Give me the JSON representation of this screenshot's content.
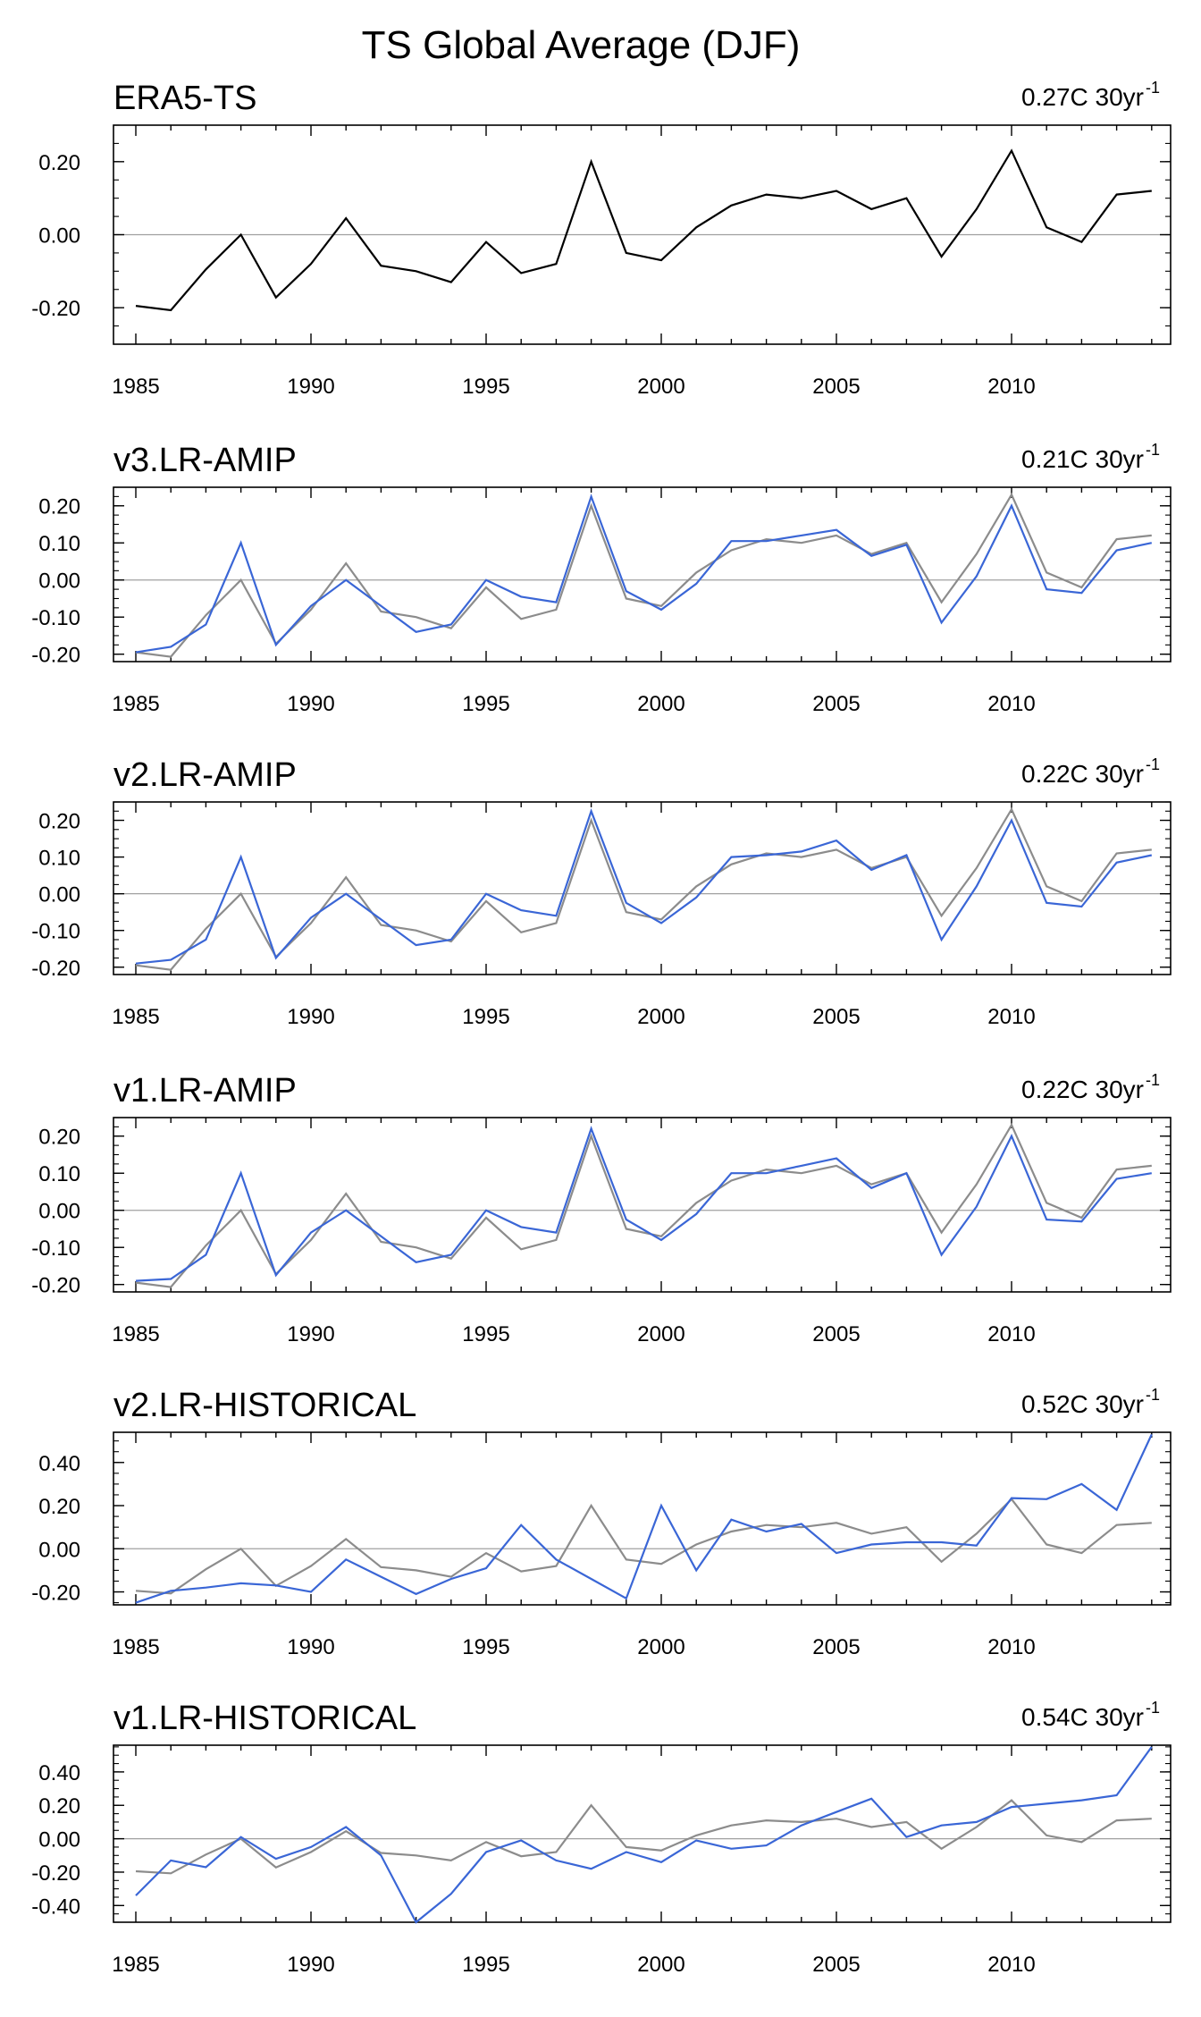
{
  "figure_title": "TS Global Average (DJF)",
  "colors": {
    "reference": "#8c8c8c",
    "reference_first": "#000000",
    "model": "#3a66d6",
    "zero_line": "#a0a0a0",
    "axis": "#000000"
  },
  "chart_data": [
    {
      "type": "line",
      "title": "ERA5-TS",
      "trend_value": "0.27C 30yr",
      "trend_exponent": "-1",
      "x": [
        1985,
        1986,
        1987,
        1988,
        1989,
        1990,
        1991,
        1992,
        1993,
        1994,
        1995,
        1996,
        1997,
        1998,
        1999,
        2000,
        2001,
        2002,
        2003,
        2004,
        2005,
        2006,
        2007,
        2008,
        2009,
        2010,
        2011,
        2012,
        2013,
        2014
      ],
      "x_ticks": [
        "1985",
        "1990",
        "1995",
        "2000",
        "2005",
        "2010"
      ],
      "ylim": [
        -0.3,
        0.3
      ],
      "y_ticks": [
        "0.20",
        "0.00",
        "-0.20"
      ],
      "series": [
        {
          "name": "ERA5-TS",
          "role": "reference",
          "values": [
            -0.195,
            -0.207,
            -0.095,
            0.0,
            -0.172,
            -0.08,
            0.045,
            -0.085,
            -0.1,
            -0.13,
            -0.02,
            -0.105,
            -0.08,
            0.2,
            -0.05,
            -0.07,
            0.02,
            0.08,
            0.11,
            0.1,
            0.12,
            0.07,
            0.1,
            -0.06,
            0.07,
            0.23,
            0.02,
            -0.02,
            0.11,
            0.12
          ]
        }
      ]
    },
    {
      "type": "line",
      "title": "v3.LR-AMIP",
      "trend_value": "0.21C 30yr",
      "trend_exponent": "-1",
      "x": [
        1985,
        1986,
        1987,
        1988,
        1989,
        1990,
        1991,
        1992,
        1993,
        1994,
        1995,
        1996,
        1997,
        1998,
        1999,
        2000,
        2001,
        2002,
        2003,
        2004,
        2005,
        2006,
        2007,
        2008,
        2009,
        2010,
        2011,
        2012,
        2013,
        2014
      ],
      "x_ticks": [
        "1985",
        "1990",
        "1995",
        "2000",
        "2005",
        "2010"
      ],
      "ylim": [
        -0.22,
        0.25
      ],
      "y_ticks": [
        "0.20",
        "0.10",
        "0.00",
        "-0.10",
        "-0.20"
      ],
      "series": [
        {
          "name": "ERA5-TS",
          "role": "reference",
          "values": [
            -0.195,
            -0.207,
            -0.095,
            0.0,
            -0.172,
            -0.08,
            0.045,
            -0.085,
            -0.1,
            -0.13,
            -0.02,
            -0.105,
            -0.08,
            0.2,
            -0.05,
            -0.07,
            0.02,
            0.08,
            0.11,
            0.1,
            0.12,
            0.07,
            0.1,
            -0.06,
            0.07,
            0.23,
            0.02,
            -0.02,
            0.11,
            0.12
          ]
        },
        {
          "name": "v3.LR-AMIP",
          "role": "model",
          "values": [
            -0.195,
            -0.18,
            -0.12,
            0.1,
            -0.175,
            -0.07,
            0.0,
            -0.07,
            -0.14,
            -0.12,
            0.0,
            -0.045,
            -0.06,
            0.225,
            -0.03,
            -0.08,
            -0.01,
            0.105,
            0.105,
            0.12,
            0.135,
            0.065,
            0.095,
            -0.115,
            0.01,
            0.2,
            -0.025,
            -0.035,
            0.08,
            0.1
          ]
        }
      ]
    },
    {
      "type": "line",
      "title": "v2.LR-AMIP",
      "trend_value": "0.22C 30yr",
      "trend_exponent": "-1",
      "x": [
        1985,
        1986,
        1987,
        1988,
        1989,
        1990,
        1991,
        1992,
        1993,
        1994,
        1995,
        1996,
        1997,
        1998,
        1999,
        2000,
        2001,
        2002,
        2003,
        2004,
        2005,
        2006,
        2007,
        2008,
        2009,
        2010,
        2011,
        2012,
        2013,
        2014
      ],
      "x_ticks": [
        "1985",
        "1990",
        "1995",
        "2000",
        "2005",
        "2010"
      ],
      "ylim": [
        -0.22,
        0.25
      ],
      "y_ticks": [
        "0.20",
        "0.10",
        "0.00",
        "-0.10",
        "-0.20"
      ],
      "series": [
        {
          "name": "ERA5-TS",
          "role": "reference",
          "values": [
            -0.195,
            -0.207,
            -0.095,
            0.0,
            -0.172,
            -0.08,
            0.045,
            -0.085,
            -0.1,
            -0.13,
            -0.02,
            -0.105,
            -0.08,
            0.2,
            -0.05,
            -0.07,
            0.02,
            0.08,
            0.11,
            0.1,
            0.12,
            0.07,
            0.1,
            -0.06,
            0.07,
            0.23,
            0.02,
            -0.02,
            0.11,
            0.12
          ]
        },
        {
          "name": "v2.LR-AMIP",
          "role": "model",
          "values": [
            -0.19,
            -0.18,
            -0.125,
            0.1,
            -0.175,
            -0.065,
            0.0,
            -0.07,
            -0.14,
            -0.125,
            0.0,
            -0.045,
            -0.06,
            0.225,
            -0.025,
            -0.08,
            -0.01,
            0.1,
            0.105,
            0.115,
            0.145,
            0.065,
            0.105,
            -0.125,
            0.02,
            0.2,
            -0.025,
            -0.035,
            0.085,
            0.105
          ]
        }
      ]
    },
    {
      "type": "line",
      "title": "v1.LR-AMIP",
      "trend_value": "0.22C 30yr",
      "trend_exponent": "-1",
      "x": [
        1985,
        1986,
        1987,
        1988,
        1989,
        1990,
        1991,
        1992,
        1993,
        1994,
        1995,
        1996,
        1997,
        1998,
        1999,
        2000,
        2001,
        2002,
        2003,
        2004,
        2005,
        2006,
        2007,
        2008,
        2009,
        2010,
        2011,
        2012,
        2013,
        2014
      ],
      "x_ticks": [
        "1985",
        "1990",
        "1995",
        "2000",
        "2005",
        "2010"
      ],
      "ylim": [
        -0.22,
        0.25
      ],
      "y_ticks": [
        "0.20",
        "0.10",
        "0.00",
        "-0.10",
        "-0.20"
      ],
      "series": [
        {
          "name": "ERA5-TS",
          "role": "reference",
          "values": [
            -0.195,
            -0.207,
            -0.095,
            0.0,
            -0.172,
            -0.08,
            0.045,
            -0.085,
            -0.1,
            -0.13,
            -0.02,
            -0.105,
            -0.08,
            0.2,
            -0.05,
            -0.07,
            0.02,
            0.08,
            0.11,
            0.1,
            0.12,
            0.07,
            0.1,
            -0.06,
            0.07,
            0.23,
            0.02,
            -0.02,
            0.11,
            0.12
          ]
        },
        {
          "name": "v1.LR-AMIP",
          "role": "model",
          "values": [
            -0.19,
            -0.185,
            -0.12,
            0.1,
            -0.175,
            -0.06,
            0.0,
            -0.07,
            -0.14,
            -0.12,
            0.0,
            -0.045,
            -0.06,
            0.22,
            -0.025,
            -0.08,
            -0.01,
            0.1,
            0.1,
            0.12,
            0.14,
            0.06,
            0.1,
            -0.12,
            0.01,
            0.2,
            -0.025,
            -0.03,
            0.085,
            0.1
          ]
        }
      ]
    },
    {
      "type": "line",
      "title": "v2.LR-HISTORICAL",
      "trend_value": "0.52C 30yr",
      "trend_exponent": "-1",
      "x": [
        1985,
        1986,
        1987,
        1988,
        1989,
        1990,
        1991,
        1992,
        1993,
        1994,
        1995,
        1996,
        1997,
        1998,
        1999,
        2000,
        2001,
        2002,
        2003,
        2004,
        2005,
        2006,
        2007,
        2008,
        2009,
        2010,
        2011,
        2012,
        2013,
        2014
      ],
      "x_ticks": [
        "1985",
        "1990",
        "1995",
        "2000",
        "2005",
        "2010"
      ],
      "ylim": [
        -0.26,
        0.54
      ],
      "y_ticks": [
        "0.40",
        "0.20",
        "0.00",
        "-0.20"
      ],
      "series": [
        {
          "name": "ERA5-TS",
          "role": "reference",
          "values": [
            -0.195,
            -0.207,
            -0.095,
            0.0,
            -0.172,
            -0.08,
            0.045,
            -0.085,
            -0.1,
            -0.13,
            -0.02,
            -0.105,
            -0.08,
            0.2,
            -0.05,
            -0.07,
            0.02,
            0.08,
            0.11,
            0.1,
            0.12,
            0.07,
            0.1,
            -0.06,
            0.07,
            0.23,
            0.02,
            -0.02,
            0.11,
            0.12
          ]
        },
        {
          "name": "v2.LR-HISTORICAL",
          "role": "model",
          "values": [
            -0.25,
            -0.195,
            -0.18,
            -0.16,
            -0.17,
            -0.2,
            -0.05,
            -0.13,
            -0.21,
            -0.14,
            -0.09,
            0.11,
            -0.05,
            -0.14,
            -0.23,
            0.2,
            -0.1,
            0.135,
            0.08,
            0.115,
            -0.02,
            0.02,
            0.03,
            0.03,
            0.015,
            0.235,
            0.23,
            0.3,
            0.18,
            0.53
          ]
        }
      ]
    },
    {
      "type": "line",
      "title": "v1.LR-HISTORICAL",
      "trend_value": "0.54C 30yr",
      "trend_exponent": "-1",
      "x": [
        1985,
        1986,
        1987,
        1988,
        1989,
        1990,
        1991,
        1992,
        1993,
        1994,
        1995,
        1996,
        1997,
        1998,
        1999,
        2000,
        2001,
        2002,
        2003,
        2004,
        2005,
        2006,
        2007,
        2008,
        2009,
        2010,
        2011,
        2012,
        2013,
        2014
      ],
      "x_ticks": [
        "1985",
        "1990",
        "1995",
        "2000",
        "2005",
        "2010"
      ],
      "ylim": [
        -0.5,
        0.56
      ],
      "y_ticks": [
        "0.40",
        "0.20",
        "0.00",
        "-0.20",
        "-0.40"
      ],
      "series": [
        {
          "name": "ERA5-TS",
          "role": "reference",
          "values": [
            -0.195,
            -0.207,
            -0.095,
            0.0,
            -0.172,
            -0.08,
            0.045,
            -0.085,
            -0.1,
            -0.13,
            -0.02,
            -0.105,
            -0.08,
            0.2,
            -0.05,
            -0.07,
            0.02,
            0.08,
            0.11,
            0.1,
            0.12,
            0.07,
            0.1,
            -0.06,
            0.07,
            0.23,
            0.02,
            -0.02,
            0.11,
            0.12
          ]
        },
        {
          "name": "v1.LR-HISTORICAL",
          "role": "model",
          "values": [
            -0.34,
            -0.13,
            -0.17,
            0.01,
            -0.12,
            -0.05,
            0.07,
            -0.1,
            -0.5,
            -0.33,
            -0.08,
            -0.01,
            -0.13,
            -0.18,
            -0.08,
            -0.14,
            -0.01,
            -0.06,
            -0.04,
            0.08,
            0.16,
            0.24,
            0.01,
            0.08,
            0.1,
            0.19,
            0.21,
            0.23,
            0.26,
            0.55
          ]
        }
      ]
    }
  ]
}
